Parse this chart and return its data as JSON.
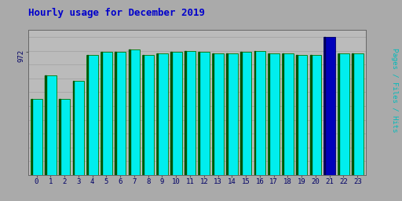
{
  "title": "Hourly usage for December 2019",
  "ylabel": "Pages / Files / Hits",
  "ytick_label": "972",
  "hours": [
    0,
    1,
    2,
    3,
    4,
    5,
    6,
    7,
    8,
    9,
    10,
    11,
    12,
    13,
    14,
    15,
    16,
    17,
    18,
    19,
    20,
    21,
    22,
    23
  ],
  "values": [
    55,
    72,
    55,
    68,
    87,
    89,
    89,
    91,
    87,
    88,
    89,
    90,
    89,
    88,
    88,
    89,
    90,
    88,
    88,
    87,
    87,
    100,
    88,
    88
  ],
  "bar_color": "#00EEEE",
  "bar_edge_color": "#007700",
  "special_bar_index": 21,
  "special_bar_color": "#0000BB",
  "special_bar_edge_color": "#000066",
  "background_color": "#AAAAAA",
  "plot_bg_color": "#BBBBBB",
  "title_color": "#0000CC",
  "ylabel_color": "#00BBBB",
  "tick_color": "#000066",
  "grid_color": "#999999",
  "ytick_pos": 89,
  "title_fontsize": 9,
  "label_fontsize": 6.5
}
